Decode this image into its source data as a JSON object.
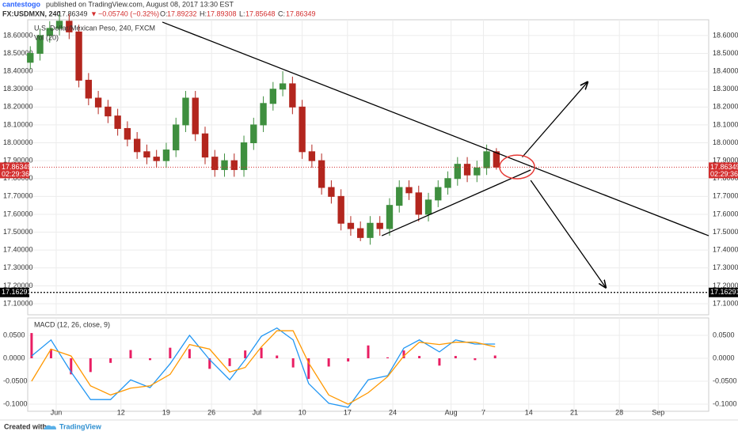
{
  "header": {
    "author": "cantestogo",
    "published": "published on TradingView.com, August 08, 2017 13:30 EST",
    "symbol": "FX:USDMXN, 240",
    "price": 17.86349,
    "change_arrow": "▼",
    "change": "−0.05740 (−0.32%)",
    "open_label": "O:",
    "open": 17.89232,
    "high_label": "H:",
    "high": 17.89308,
    "low_label": "L:",
    "low": 17.85648,
    "close_label": "C:",
    "close": 17.86349
  },
  "footer": {
    "created": "Created with",
    "brand": "TradingView"
  },
  "chart_data": [
    {
      "type": "candlestick",
      "title": "U.S. Dollar/Mexican Peso, 240, FXCM",
      "subtitle": "Vol (20)",
      "x": [
        -2,
        -0.5,
        1,
        2.5,
        4,
        5.5,
        7,
        8.5,
        10,
        11.5,
        13,
        14.5,
        16,
        17.5,
        19,
        20.5,
        22,
        23.5,
        25,
        26.5,
        28,
        29.5,
        31,
        32.5,
        34,
        35.5,
        37,
        38.5,
        40,
        41.5,
        43,
        44.5,
        46,
        47.5,
        49,
        50.5,
        52,
        53.5,
        55,
        56.5,
        58,
        59.5,
        61,
        62.5,
        64,
        65.5,
        67,
        68.5,
        70
      ],
      "open": [
        18.45,
        18.5,
        18.6,
        18.64,
        18.68,
        18.62,
        18.35,
        18.25,
        18.2,
        18.15,
        18.08,
        18.02,
        17.95,
        17.92,
        17.9,
        17.96,
        18.1,
        18.25,
        18.05,
        17.92,
        17.85,
        17.9,
        17.85,
        18.0,
        18.1,
        18.22,
        18.3,
        18.33,
        18.2,
        17.95,
        17.9,
        17.75,
        17.7,
        17.55,
        17.52,
        17.47,
        17.55,
        17.52,
        17.65,
        17.75,
        17.72,
        17.6,
        17.68,
        17.75,
        17.8,
        17.88,
        17.82,
        17.86,
        17.95
      ],
      "high": [
        18.54,
        18.64,
        18.68,
        18.72,
        18.72,
        18.66,
        18.39,
        18.29,
        18.24,
        18.19,
        18.12,
        18.06,
        17.99,
        17.96,
        18.0,
        18.14,
        18.29,
        18.29,
        18.09,
        17.96,
        17.94,
        17.94,
        18.04,
        18.14,
        18.26,
        18.34,
        18.4,
        18.37,
        18.24,
        17.99,
        17.94,
        17.79,
        17.74,
        17.59,
        17.56,
        17.59,
        17.59,
        17.69,
        17.79,
        17.79,
        17.76,
        17.72,
        17.79,
        17.84,
        17.92,
        17.92,
        17.9,
        17.99,
        17.97
      ],
      "low": [
        18.41,
        18.46,
        18.56,
        18.6,
        18.58,
        18.31,
        18.21,
        18.16,
        18.11,
        18.04,
        17.98,
        17.91,
        17.88,
        17.86,
        17.86,
        17.92,
        18.06,
        18.01,
        17.88,
        17.81,
        17.81,
        17.81,
        17.81,
        17.96,
        18.06,
        18.18,
        18.26,
        18.16,
        17.91,
        17.86,
        17.71,
        17.66,
        17.51,
        17.48,
        17.45,
        17.43,
        17.48,
        17.48,
        17.61,
        17.68,
        17.56,
        17.56,
        17.64,
        17.71,
        17.76,
        17.78,
        17.78,
        17.82,
        17.85
      ],
      "close": [
        18.5,
        18.6,
        18.64,
        18.68,
        18.62,
        18.35,
        18.25,
        18.2,
        18.15,
        18.08,
        18.02,
        17.95,
        17.92,
        17.9,
        17.96,
        18.1,
        18.25,
        18.05,
        17.92,
        17.85,
        17.9,
        17.85,
        18.0,
        18.1,
        18.22,
        18.3,
        18.33,
        18.2,
        17.95,
        17.9,
        17.75,
        17.7,
        17.55,
        17.52,
        17.47,
        17.55,
        17.52,
        17.65,
        17.75,
        17.72,
        17.6,
        17.68,
        17.75,
        17.8,
        17.88,
        17.82,
        17.86,
        17.95,
        17.86349
      ],
      "up_color": "#3f8f3f",
      "down_color": "#b3261e",
      "last_price": 17.86349,
      "last_price_color": "#d32f2f",
      "countdown": "02:29:36",
      "level": 17.16291,
      "xlim": [
        -2.4,
        102.8
      ],
      "ylim": [
        17.038,
        18.688
      ],
      "yticks": [
        {
          "value": 17.1,
          "label": "17.10000"
        },
        {
          "value": 17.2,
          "label": "17.20000"
        },
        {
          "value": 17.3,
          "label": "17.30000"
        },
        {
          "value": 17.4,
          "label": "17.40000"
        },
        {
          "value": 17.5,
          "label": "17.50000"
        },
        {
          "value": 17.6,
          "label": "17.60000"
        },
        {
          "value": 17.7,
          "label": "17.70000"
        },
        {
          "value": 17.8,
          "label": "17.80000"
        },
        {
          "value": 17.9,
          "label": "17.90000"
        },
        {
          "value": 18,
          "label": "18.00000"
        },
        {
          "value": 18.1,
          "label": "18.10000"
        },
        {
          "value": 18.2,
          "label": "18.20000"
        },
        {
          "value": 18.3,
          "label": "18.30000"
        },
        {
          "value": 18.4,
          "label": "18.40000"
        },
        {
          "value": 18.5,
          "label": "18.50000"
        },
        {
          "value": 18.6,
          "label": "18.60000"
        }
      ],
      "xticks": [
        {
          "value": 2,
          "label": "Jun"
        },
        {
          "value": 12,
          "label": "12"
        },
        {
          "value": 19,
          "label": "19"
        },
        {
          "value": 26,
          "label": "26"
        },
        {
          "value": 33,
          "label": "Jul"
        },
        {
          "value": 40,
          "label": "10"
        },
        {
          "value": 47,
          "label": "17"
        },
        {
          "value": 54,
          "label": "24"
        },
        {
          "value": 63,
          "label": "Aug"
        },
        {
          "value": 68,
          "label": "7"
        },
        {
          "value": 75,
          "label": "14"
        },
        {
          "value": 82,
          "label": "21"
        },
        {
          "value": 89,
          "label": "28"
        },
        {
          "value": 95,
          "label": "Sep"
        }
      ],
      "grid": true,
      "drawings": [
        {
          "x": [
            18.4,
            102.8
          ],
          "y": [
            18.675,
            17.48
          ],
          "arrow": false
        },
        {
          "x": [
            52.3,
            75.3
          ],
          "y": [
            17.48,
            17.848
          ],
          "arrow": false
        },
        {
          "x": [
            74,
            84.1
          ],
          "y": [
            17.92,
            18.34
          ],
          "arrow": true
        },
        {
          "x": [
            75.3,
            86.9
          ],
          "y": [
            17.79,
            17.19
          ],
          "arrow": true
        }
      ],
      "ellipse": {
        "x": 73.2,
        "y": 17.865,
        "rx": 2.7,
        "ry": 0.066,
        "color": "#e53935"
      }
    },
    {
      "type": "line",
      "title": "MACD (12, 26, close, 9)",
      "x": [
        -1.8,
        1.2,
        4.3,
        7.3,
        10.4,
        13.5,
        16.5,
        19.6,
        22.6,
        25.7,
        28.8,
        31.2,
        33.7,
        36.1,
        38.6,
        41.0,
        44.1,
        47.1,
        50.2,
        53.2,
        55.7,
        58.1,
        61.2,
        63.7,
        66.7,
        69.8
      ],
      "series": [
        {
          "color": "#2196f3",
          "values": [
            0.005,
            0.04,
            -0.03,
            -0.09,
            -0.09,
            -0.047,
            -0.064,
            -0.012,
            0.05,
            -0.003,
            -0.047,
            -0.003,
            0.048,
            0.066,
            0.04,
            -0.055,
            -0.098,
            -0.107,
            -0.047,
            -0.038,
            0.022,
            0.04,
            0.014,
            0.04,
            0.031,
            0.031
          ]
        },
        {
          "color": "#ff9800",
          "values": [
            -0.05,
            0.02,
            0.005,
            -0.06,
            -0.08,
            -0.065,
            -0.06,
            -0.035,
            0.03,
            0.02,
            -0.03,
            -0.02,
            0.025,
            0.06,
            0.06,
            -0.01,
            -0.08,
            -0.1,
            -0.075,
            -0.04,
            0.005,
            0.035,
            0.03,
            0.035,
            0.035,
            0.025
          ]
        }
      ],
      "histogram": {
        "color": "#e91e63",
        "values": [
          0.055,
          0.02,
          -0.035,
          -0.03,
          -0.01,
          0.018,
          -0.004,
          0.023,
          0.02,
          -0.023,
          -0.017,
          0.017,
          0.023,
          0.006,
          -0.02,
          -0.045,
          -0.018,
          -0.007,
          0.028,
          0.002,
          0.017,
          0.005,
          -0.016,
          0.005,
          -0.004,
          0.006
        ]
      },
      "xlim": [
        -2.4,
        102.8
      ],
      "ylim": [
        -0.1155,
        0.0879
      ],
      "yticks": [
        {
          "value": 0.05,
          "label": "0.0500"
        },
        {
          "value": 0,
          "label": "0.0000"
        },
        {
          "value": -0.05,
          "label": "-0.0500"
        },
        {
          "value": -0.1,
          "label": "-0.1000"
        }
      ]
    }
  ]
}
